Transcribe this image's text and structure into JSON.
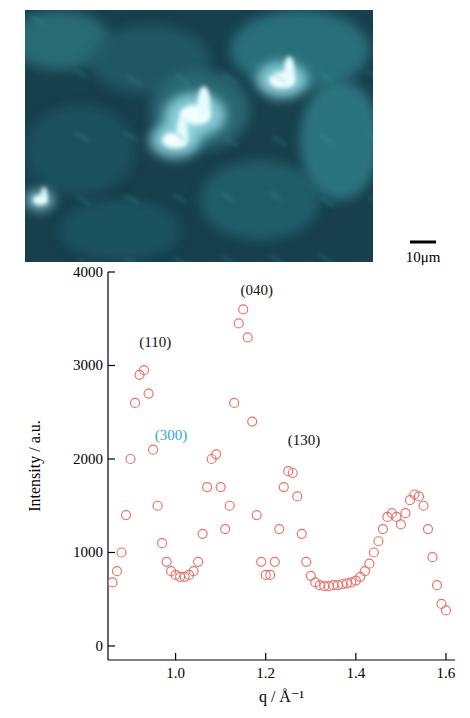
{
  "image": {
    "scale_bar_label": "10μm"
  },
  "chart_data": {
    "type": "scatter",
    "marker": "open-circle",
    "color": "#e8736b",
    "x_label": "q / Å⁻¹",
    "y_label": "Intensity / a.u.",
    "xlim": [
      0.85,
      1.62
    ],
    "ylim": [
      -150,
      4000
    ],
    "xticks": [
      {
        "value": 1,
        "label": "1.0"
      },
      {
        "value": 1.2,
        "label": "1.2"
      },
      {
        "value": 1.4,
        "label": "1.4"
      },
      {
        "value": 1.6,
        "label": "1.6"
      }
    ],
    "yticks": [
      0,
      1000,
      2000,
      3000,
      4000
    ],
    "x": [
      0.86,
      0.87,
      0.88,
      0.89,
      0.9,
      0.91,
      0.92,
      0.93,
      0.94,
      0.95,
      0.96,
      0.97,
      0.98,
      0.99,
      1.0,
      1.01,
      1.02,
      1.03,
      1.04,
      1.05,
      1.06,
      1.07,
      1.08,
      1.09,
      1.1,
      1.11,
      1.12,
      1.13,
      1.14,
      1.15,
      1.16,
      1.17,
      1.18,
      1.19,
      1.2,
      1.21,
      1.22,
      1.23,
      1.24,
      1.25,
      1.26,
      1.27,
      1.28,
      1.29,
      1.3,
      1.31,
      1.32,
      1.33,
      1.34,
      1.35,
      1.36,
      1.37,
      1.38,
      1.39,
      1.4,
      1.41,
      1.42,
      1.43,
      1.44,
      1.45,
      1.46,
      1.47,
      1.48,
      1.49,
      1.5,
      1.51,
      1.52,
      1.53,
      1.54,
      1.55,
      1.56,
      1.57,
      1.58,
      1.59,
      1.6
    ],
    "values": [
      680,
      800,
      1000,
      1400,
      2000,
      2600,
      2900,
      2950,
      2700,
      2100,
      1500,
      1100,
      900,
      800,
      760,
      740,
      740,
      760,
      800,
      900,
      1200,
      1700,
      2000,
      2050,
      1700,
      1250,
      1500,
      2600,
      3450,
      3600,
      3300,
      2400,
      1400,
      900,
      760,
      760,
      900,
      1250,
      1700,
      1870,
      1850,
      1600,
      1200,
      900,
      750,
      680,
      650,
      640,
      640,
      650,
      650,
      660,
      670,
      680,
      700,
      740,
      800,
      880,
      1000,
      1120,
      1250,
      1380,
      1420,
      1380,
      1300,
      1420,
      1560,
      1620,
      1600,
      1500,
      1250,
      950,
      650,
      450,
      380
    ],
    "annotations": [
      {
        "text": "(110)",
        "x": 0.955,
        "y": 3200,
        "color": "#111111"
      },
      {
        "text": "(300)",
        "x": 0.99,
        "y": 2200,
        "color": "#2ea8d8"
      },
      {
        "text": "(040)",
        "x": 1.18,
        "y": 3750,
        "color": "#111111"
      },
      {
        "text": "(130)",
        "x": 1.285,
        "y": 2150,
        "color": "#111111"
      }
    ]
  }
}
